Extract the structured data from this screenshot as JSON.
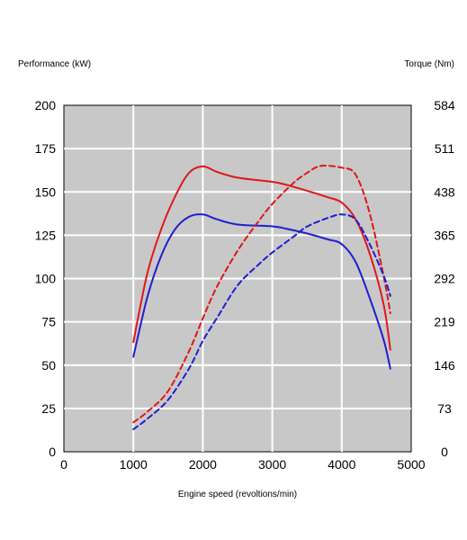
{
  "chart_data": {
    "type": "line",
    "title": "",
    "xlabel": "Engine speed (revoltions/min)",
    "ylabel_left": "Performance (kW)",
    "ylabel_right": "Torque (Nm)",
    "xlim": [
      0,
      5000
    ],
    "ylim_left": [
      0,
      200
    ],
    "ylim_right": [
      0,
      584
    ],
    "x_ticks": [
      "0",
      "1000",
      "2000",
      "3000",
      "4000",
      "5000"
    ],
    "y_ticks_left": [
      "0",
      "25",
      "50",
      "75",
      "100",
      "125",
      "150",
      "175",
      "200"
    ],
    "y_ticks_right": [
      "0",
      "73",
      "146",
      "219",
      "292",
      "365",
      "438",
      "511",
      "584"
    ],
    "grid": true,
    "plot_background": "#c8c8c8",
    "grid_color": "#ffffff",
    "series": [
      {
        "axis": "right",
        "color": "#e0161b",
        "dash": "solid",
        "points": [
          [
            1000,
            185
          ],
          [
            1200,
            300
          ],
          [
            1400,
            375
          ],
          [
            1600,
            430
          ],
          [
            1800,
            470
          ],
          [
            2000,
            481
          ],
          [
            2200,
            472
          ],
          [
            2500,
            462
          ],
          [
            3000,
            455
          ],
          [
            3200,
            450
          ],
          [
            3500,
            440
          ],
          [
            3800,
            429
          ],
          [
            4000,
            420
          ],
          [
            4200,
            392
          ],
          [
            4400,
            335
          ],
          [
            4600,
            250
          ],
          [
            4700,
            172
          ]
        ]
      },
      {
        "axis": "right",
        "color": "#1f1fd0",
        "dash": "solid",
        "points": [
          [
            1000,
            160
          ],
          [
            1200,
            260
          ],
          [
            1400,
            330
          ],
          [
            1600,
            375
          ],
          [
            1800,
            396
          ],
          [
            2000,
            400
          ],
          [
            2200,
            392
          ],
          [
            2500,
            383
          ],
          [
            3000,
            380
          ],
          [
            3200,
            376
          ],
          [
            3500,
            368
          ],
          [
            3800,
            358
          ],
          [
            4000,
            350
          ],
          [
            4200,
            320
          ],
          [
            4400,
            260
          ],
          [
            4600,
            190
          ],
          [
            4700,
            140
          ]
        ]
      },
      {
        "axis": "left",
        "color": "#e0161b",
        "dash": "dashed",
        "points": [
          [
            1000,
            17
          ],
          [
            1200,
            23
          ],
          [
            1500,
            35
          ],
          [
            1800,
            58
          ],
          [
            2000,
            77
          ],
          [
            2200,
            95
          ],
          [
            2500,
            116
          ],
          [
            2800,
            133
          ],
          [
            3000,
            143
          ],
          [
            3300,
            155
          ],
          [
            3500,
            161
          ],
          [
            3700,
            165
          ],
          [
            4000,
            164
          ],
          [
            4200,
            160
          ],
          [
            4400,
            138
          ],
          [
            4600,
            102
          ],
          [
            4700,
            80
          ]
        ]
      },
      {
        "axis": "left",
        "color": "#1f1fd0",
        "dash": "dashed",
        "points": [
          [
            1000,
            13
          ],
          [
            1200,
            19
          ],
          [
            1500,
            30
          ],
          [
            1800,
            48
          ],
          [
            2000,
            64
          ],
          [
            2200,
            77
          ],
          [
            2500,
            96
          ],
          [
            2800,
            108
          ],
          [
            3000,
            115
          ],
          [
            3300,
            124
          ],
          [
            3500,
            130
          ],
          [
            3800,
            135
          ],
          [
            4000,
            137
          ],
          [
            4200,
            134
          ],
          [
            4400,
            120
          ],
          [
            4600,
            102
          ],
          [
            4700,
            90
          ]
        ]
      }
    ]
  }
}
